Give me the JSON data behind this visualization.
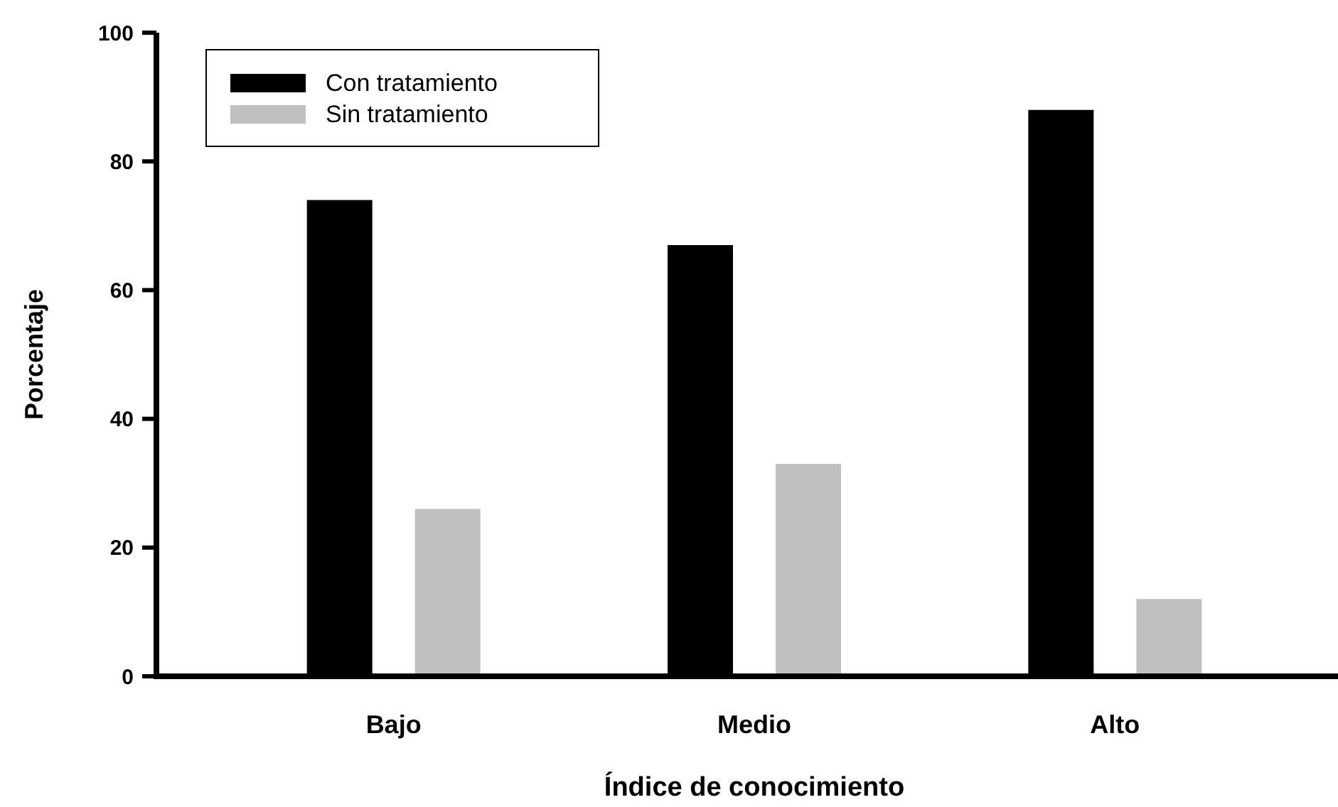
{
  "chart_data": {
    "type": "bar",
    "xlabel": "Índice de conocimiento",
    "ylabel": "Porcentaje",
    "categories": [
      "Bajo",
      "Medio",
      "Alto"
    ],
    "series": [
      {
        "name": "Con tratamiento",
        "color": "#000000",
        "values": [
          74,
          67,
          88
        ]
      },
      {
        "name": "Sin tratamiento",
        "color": "#c0c0c0",
        "values": [
          26,
          33,
          12
        ]
      }
    ],
    "ylim": [
      0,
      100
    ],
    "yticks": [
      0,
      20,
      40,
      60,
      80,
      100
    ],
    "grid": false,
    "legend": "top left"
  }
}
